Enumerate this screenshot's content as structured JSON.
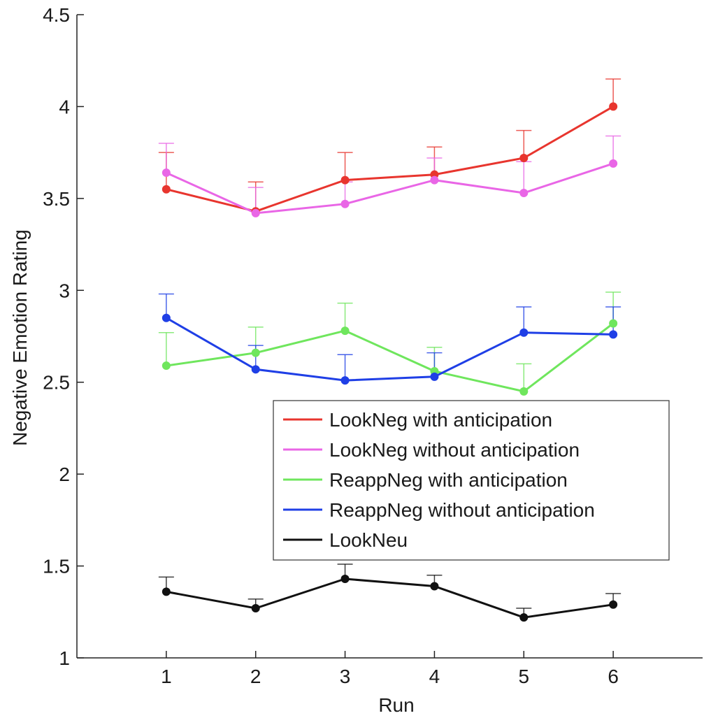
{
  "chart_data": {
    "type": "line",
    "title": "",
    "xlabel": "Run",
    "ylabel": "Negative Emotion Rating",
    "x": [
      1,
      2,
      3,
      4,
      5,
      6
    ],
    "xlim": [
      0,
      7
    ],
    "ylim": [
      1,
      4.5
    ],
    "x_ticks": [
      "1",
      "2",
      "3",
      "4",
      "5",
      "6"
    ],
    "y_ticks": [
      "1",
      "1.5",
      "2",
      "2.5",
      "3",
      "3.5",
      "4",
      "4.5"
    ],
    "grid": false,
    "legend_position": "lower-right",
    "series": [
      {
        "name": "LookNeg with anticipation",
        "color": "#e8352e",
        "values": [
          3.55,
          3.43,
          3.6,
          3.63,
          3.72,
          4.0
        ],
        "error_upper": [
          3.75,
          3.59,
          3.75,
          3.78,
          3.87,
          4.15
        ]
      },
      {
        "name": "LookNeg without anticipation",
        "color": "#e966e6",
        "values": [
          3.64,
          3.42,
          3.47,
          3.6,
          3.53,
          3.69
        ],
        "error_upper": [
          3.8,
          3.56,
          3.59,
          3.72,
          3.7,
          3.84
        ]
      },
      {
        "name": "ReappNeg with anticipation",
        "color": "#6fe65d",
        "values": [
          2.59,
          2.66,
          2.78,
          2.56,
          2.45,
          2.82
        ],
        "error_upper": [
          2.77,
          2.8,
          2.93,
          2.69,
          2.6,
          2.99
        ]
      },
      {
        "name": "ReappNeg without anticipation",
        "color": "#1f3fe6",
        "values": [
          2.85,
          2.57,
          2.51,
          2.53,
          2.77,
          2.76
        ],
        "error_upper": [
          2.98,
          2.7,
          2.65,
          2.66,
          2.91,
          2.91
        ]
      },
      {
        "name": "LookNeu",
        "color": "#111111",
        "values": [
          1.36,
          1.27,
          1.43,
          1.39,
          1.22,
          1.29
        ],
        "error_upper": [
          1.44,
          1.32,
          1.51,
          1.45,
          1.27,
          1.35
        ]
      }
    ]
  }
}
